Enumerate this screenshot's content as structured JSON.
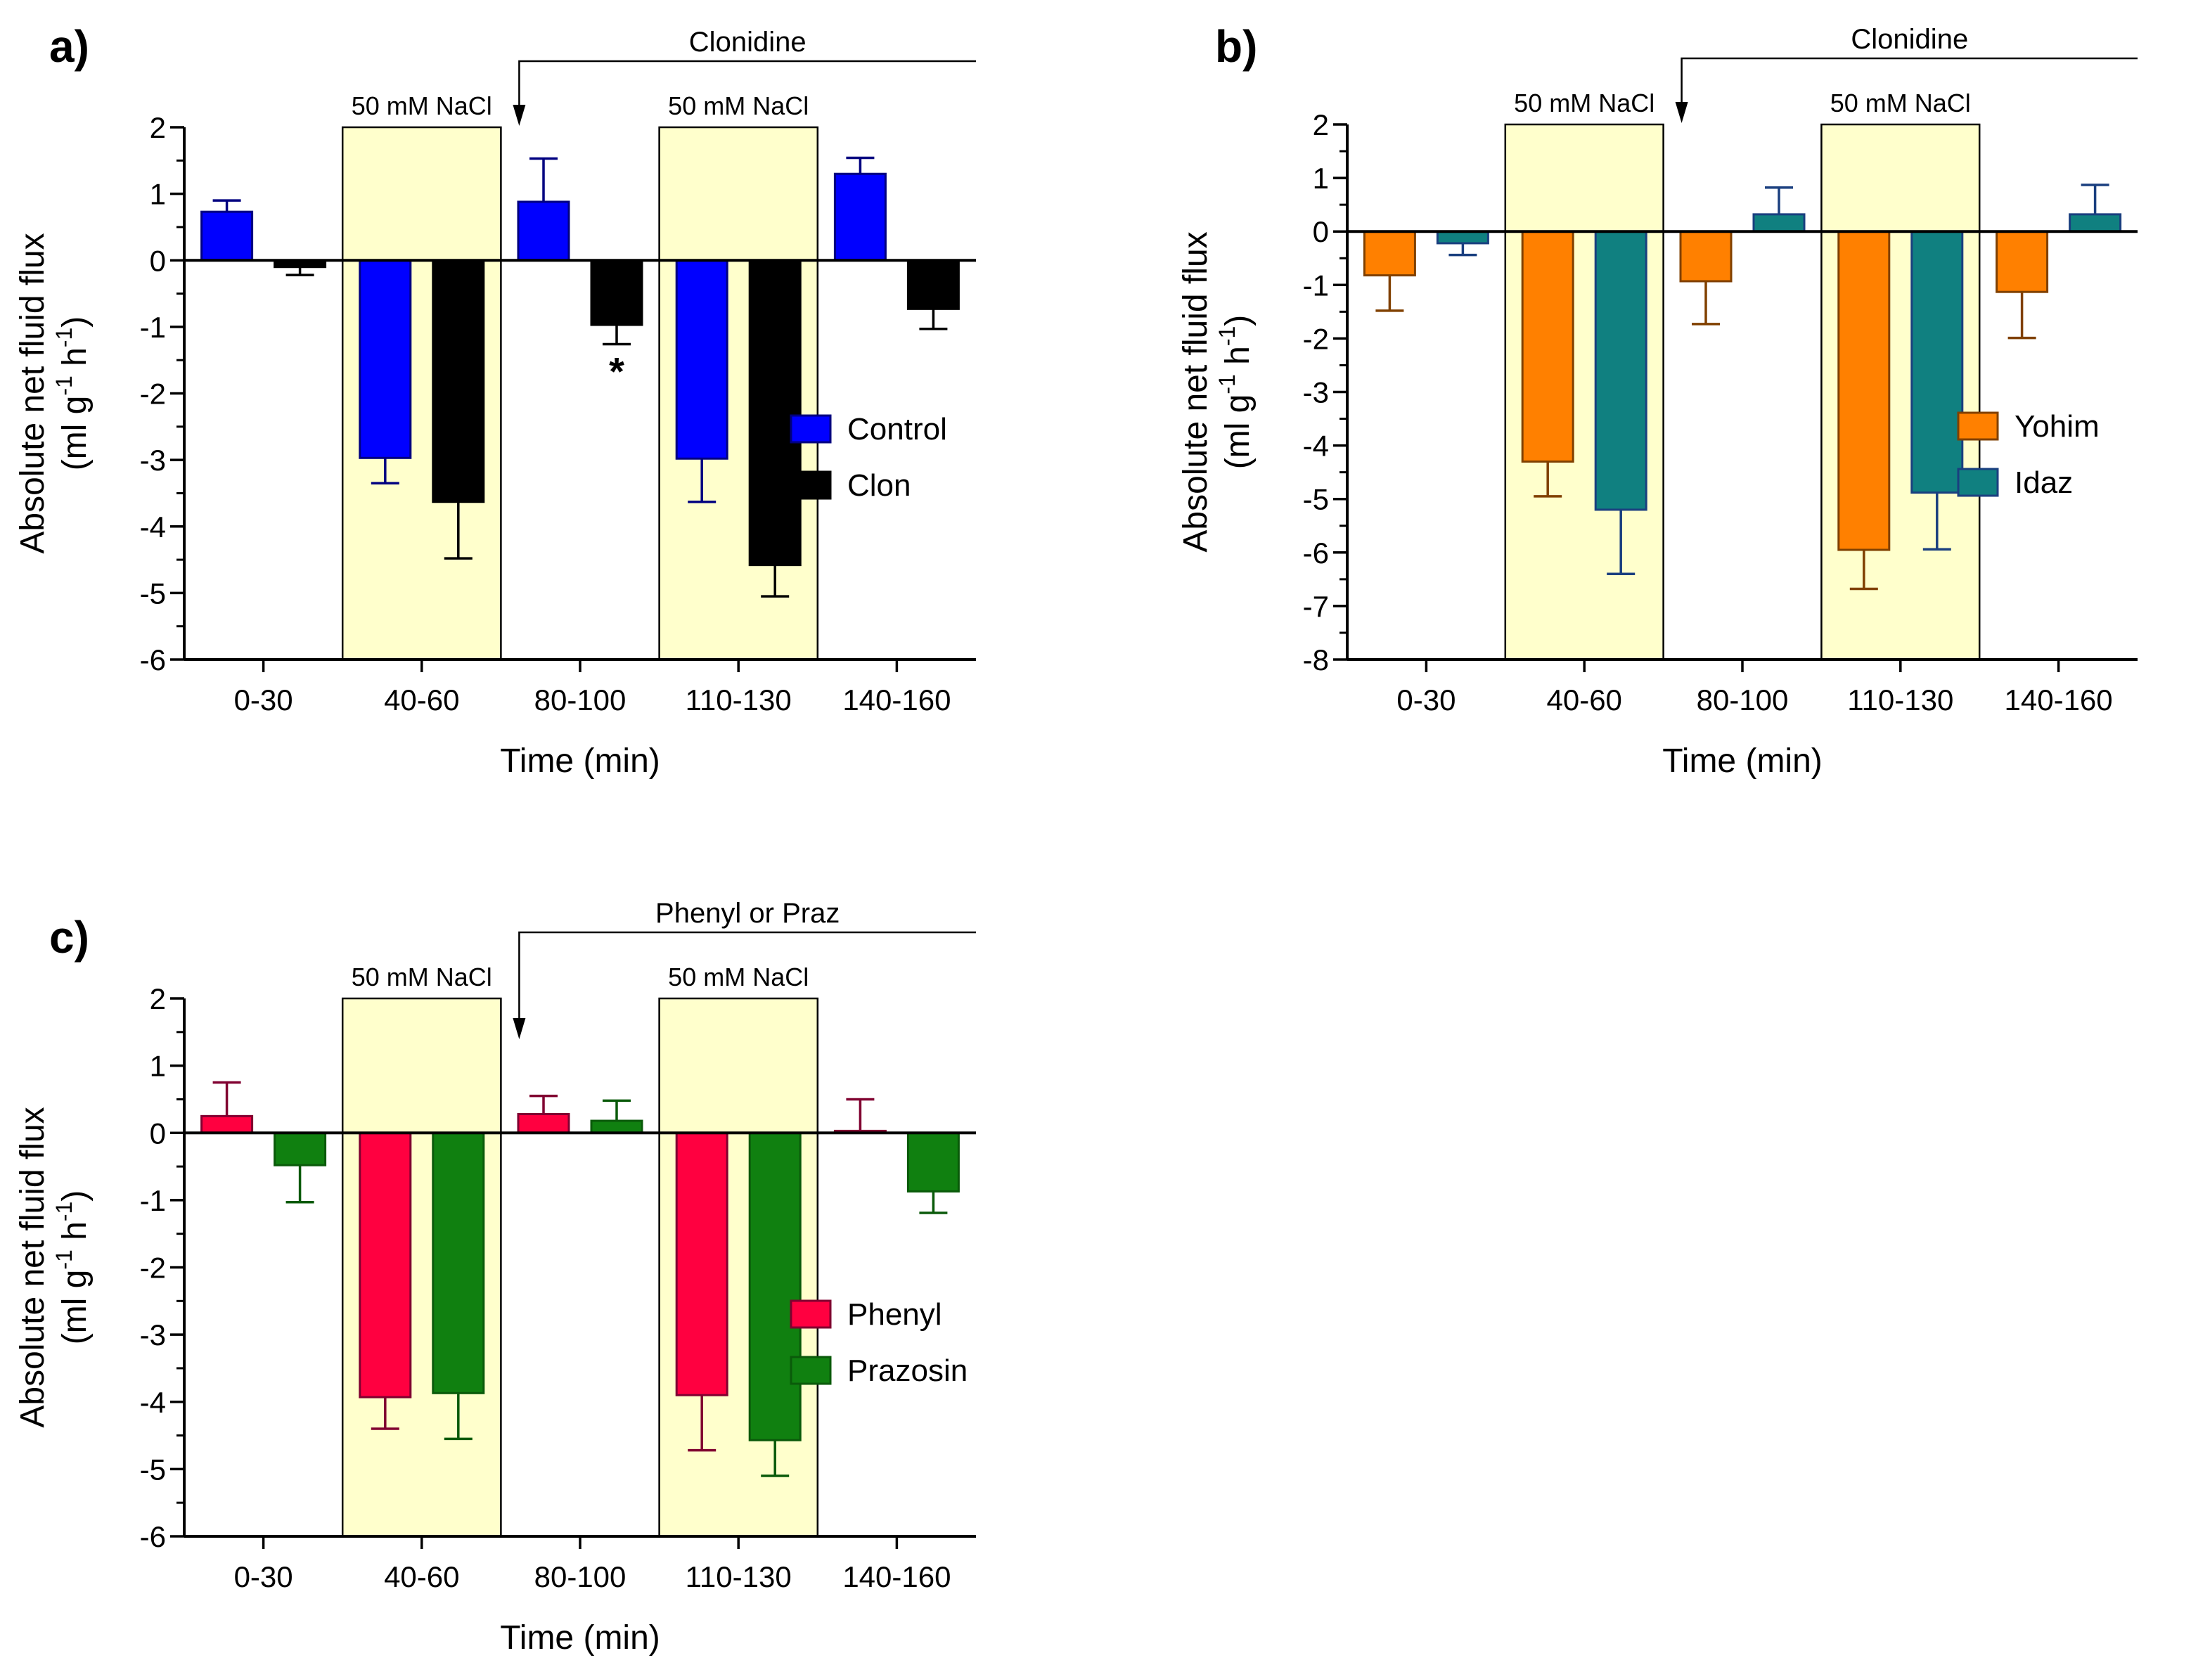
{
  "colors": {
    "shade": "#ffffcc",
    "axis": "#000000"
  },
  "chart_data": [
    {
      "id": "a",
      "panel_label": "a)",
      "type": "bar",
      "categories": [
        "0-30",
        "40-60",
        "80-100",
        "110-130",
        "140-160"
      ],
      "xlabel": "Time (min)",
      "ylabel_line1": "Absolute net fluid flux",
      "ylabel_line2": {
        "pre": "(ml g",
        "sup1": "-1",
        "mid": " h",
        "sup2": "-1",
        "post": ")"
      },
      "ylim": [
        -6,
        2
      ],
      "yticks": [
        2,
        1,
        0,
        -1,
        -2,
        -3,
        -4,
        -5,
        -6
      ],
      "shaded_categories": [
        1,
        3
      ],
      "shade_label": "50 mM NaCl",
      "drug_label": "Clonidine",
      "drug_start_after_category": 1,
      "legend_position": "center-right",
      "series": [
        {
          "name": "Control",
          "color": "#0000ff",
          "edge": "#000080",
          "values": [
            0.73,
            -2.97,
            0.88,
            -2.98,
            1.3
          ],
          "errors": [
            0.17,
            0.38,
            0.65,
            0.65,
            0.24
          ]
        },
        {
          "name": "Clon",
          "color": "#000000",
          "edge": "#000000",
          "values": [
            -0.1,
            -3.63,
            -0.97,
            -4.58,
            -0.73
          ],
          "errors": [
            0.12,
            0.85,
            0.29,
            0.47,
            0.3
          ]
        }
      ],
      "annotations": [
        {
          "text": "*",
          "category": 2,
          "series": 1
        }
      ]
    },
    {
      "id": "b",
      "panel_label": "b)",
      "type": "bar",
      "categories": [
        "0-30",
        "40-60",
        "80-100",
        "110-130",
        "140-160"
      ],
      "xlabel": "Time (min)",
      "ylabel_line1": "Absolute net fluid flux",
      "ylabel_line2": {
        "pre": "(ml g",
        "sup1": "-1",
        "mid": " h",
        "sup2": "-1",
        "post": ")"
      },
      "ylim": [
        -8,
        2
      ],
      "yticks": [
        2,
        1,
        0,
        -1,
        -2,
        -3,
        -4,
        -5,
        -6,
        -7,
        -8
      ],
      "shaded_categories": [
        1,
        3
      ],
      "shade_label": "50 mM NaCl",
      "drug_label": "Clonidine",
      "drug_start_after_category": 1,
      "legend_position": "center-right",
      "series": [
        {
          "name": "Yohim",
          "color": "#ff8000",
          "edge": "#804000",
          "values": [
            -0.82,
            -4.3,
            -0.93,
            -5.95,
            -1.13
          ],
          "errors": [
            0.66,
            0.65,
            0.8,
            0.73,
            0.86
          ]
        },
        {
          "name": "Idaz",
          "color": "#108080",
          "edge": "#1a3f7f",
          "values": [
            -0.22,
            -5.2,
            0.32,
            -4.88,
            0.32
          ],
          "errors": [
            0.22,
            1.2,
            0.5,
            1.06,
            0.55
          ]
        }
      ],
      "annotations": []
    },
    {
      "id": "c",
      "panel_label": "c)",
      "type": "bar",
      "categories": [
        "0-30",
        "40-60",
        "80-100",
        "110-130",
        "140-160"
      ],
      "xlabel": "Time (min)",
      "ylabel_line1": "Absolute net fluid flux",
      "ylabel_line2": {
        "pre": "(ml g",
        "sup1": "-1",
        "mid": " h",
        "sup2": "-1",
        "post": ")"
      },
      "ylim": [
        -6,
        2
      ],
      "yticks": [
        2,
        1,
        0,
        -1,
        -2,
        -3,
        -4,
        -5,
        -6
      ],
      "shaded_categories": [
        1,
        3
      ],
      "shade_label": "50 mM NaCl",
      "drug_label": "Phenyl or Praz",
      "drug_start_after_category": 1,
      "legend_position": "center-right",
      "series": [
        {
          "name": "Phenyl",
          "color": "#ff0040",
          "edge": "#800030",
          "values": [
            0.25,
            -3.93,
            0.28,
            -3.9,
            0.03
          ],
          "errors": [
            0.5,
            0.47,
            0.27,
            0.82,
            0.47
          ]
        },
        {
          "name": "Prazosin",
          "color": "#108010",
          "edge": "#0a5a0a",
          "values": [
            -0.48,
            -3.87,
            0.18,
            -4.57,
            -0.87
          ],
          "errors": [
            0.55,
            0.68,
            0.3,
            0.53,
            0.32
          ]
        }
      ],
      "annotations": []
    }
  ]
}
